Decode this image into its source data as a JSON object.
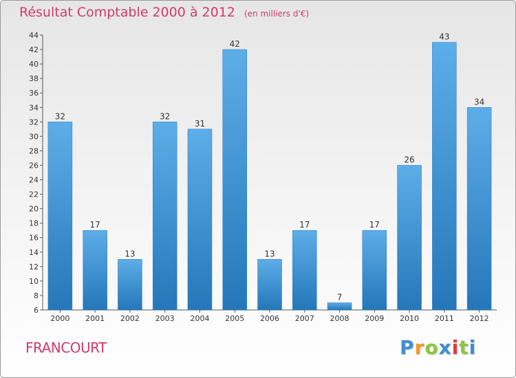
{
  "title": {
    "main": "Résultat Comptable 2000 à 2012",
    "unit": "(en milliers d'€)"
  },
  "commune": "FRANCOURT",
  "logo": {
    "letters": [
      "P",
      "r",
      "o",
      "x",
      "i",
      "t",
      "i"
    ]
  },
  "colors": {
    "accent": "#d23a6a",
    "bar_light": "#5dade8",
    "bar_dark": "#2577b9"
  },
  "chart_data": {
    "type": "bar",
    "title": "Résultat Comptable 2000 à 2012",
    "categories": [
      "2000",
      "2001",
      "2002",
      "2003",
      "2004",
      "2005",
      "2006",
      "2007",
      "2008",
      "2009",
      "2010",
      "2011",
      "2012"
    ],
    "values": [
      32,
      17,
      13,
      32,
      31,
      42,
      13,
      17,
      7,
      17,
      26,
      43,
      34
    ],
    "ylim": [
      6,
      44
    ],
    "yticks": [
      6,
      8,
      10,
      12,
      14,
      16,
      18,
      20,
      22,
      24,
      26,
      28,
      30,
      32,
      34,
      36,
      38,
      40,
      42,
      44
    ],
    "xlabel": "",
    "ylabel": "",
    "grid": false,
    "data_labels": true
  }
}
